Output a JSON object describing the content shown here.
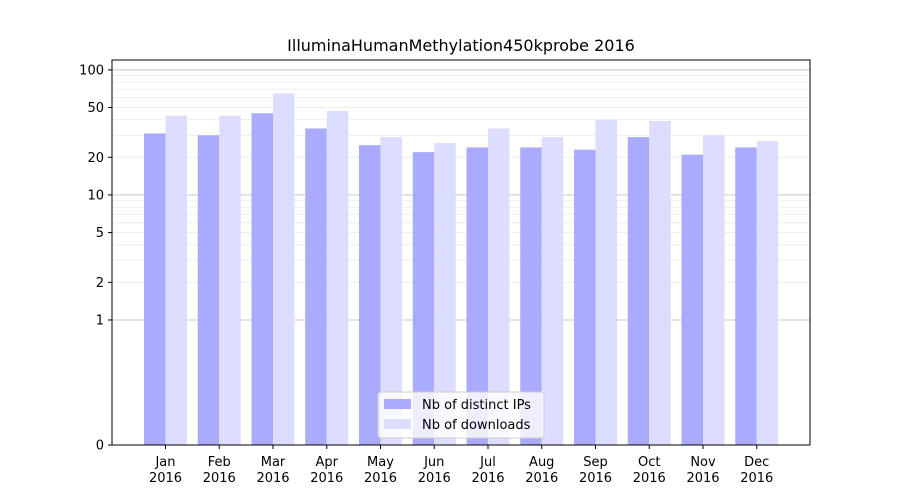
{
  "chart_data": {
    "type": "bar",
    "title": "IlluminaHumanMethylation450kprobe 2016",
    "xlabel": "",
    "ylabel": "",
    "yscale": "symlog",
    "ylim": [
      0,
      120
    ],
    "yticks": [
      "0",
      "1",
      "2",
      "5",
      "10",
      "20",
      "50",
      "100"
    ],
    "grid": true,
    "legend_position": "lower-center",
    "categories": [
      "Jan\n2016",
      "Feb\n2016",
      "Mar\n2016",
      "Apr\n2016",
      "May\n2016",
      "Jun\n2016",
      "Jul\n2016",
      "Aug\n2016",
      "Sep\n2016",
      "Oct\n2016",
      "Nov\n2016",
      "Dec\n2016"
    ],
    "series": [
      {
        "name": "Nb of distinct IPs",
        "color": "#aaaaff",
        "values": [
          31,
          30,
          45,
          34,
          25,
          22,
          24,
          24,
          23,
          29,
          21,
          24
        ]
      },
      {
        "name": "Nb of downloads",
        "color": "#ddddff",
        "values": [
          43,
          43,
          65,
          47,
          29,
          26,
          34,
          29,
          40,
          39,
          30,
          27
        ]
      }
    ]
  }
}
